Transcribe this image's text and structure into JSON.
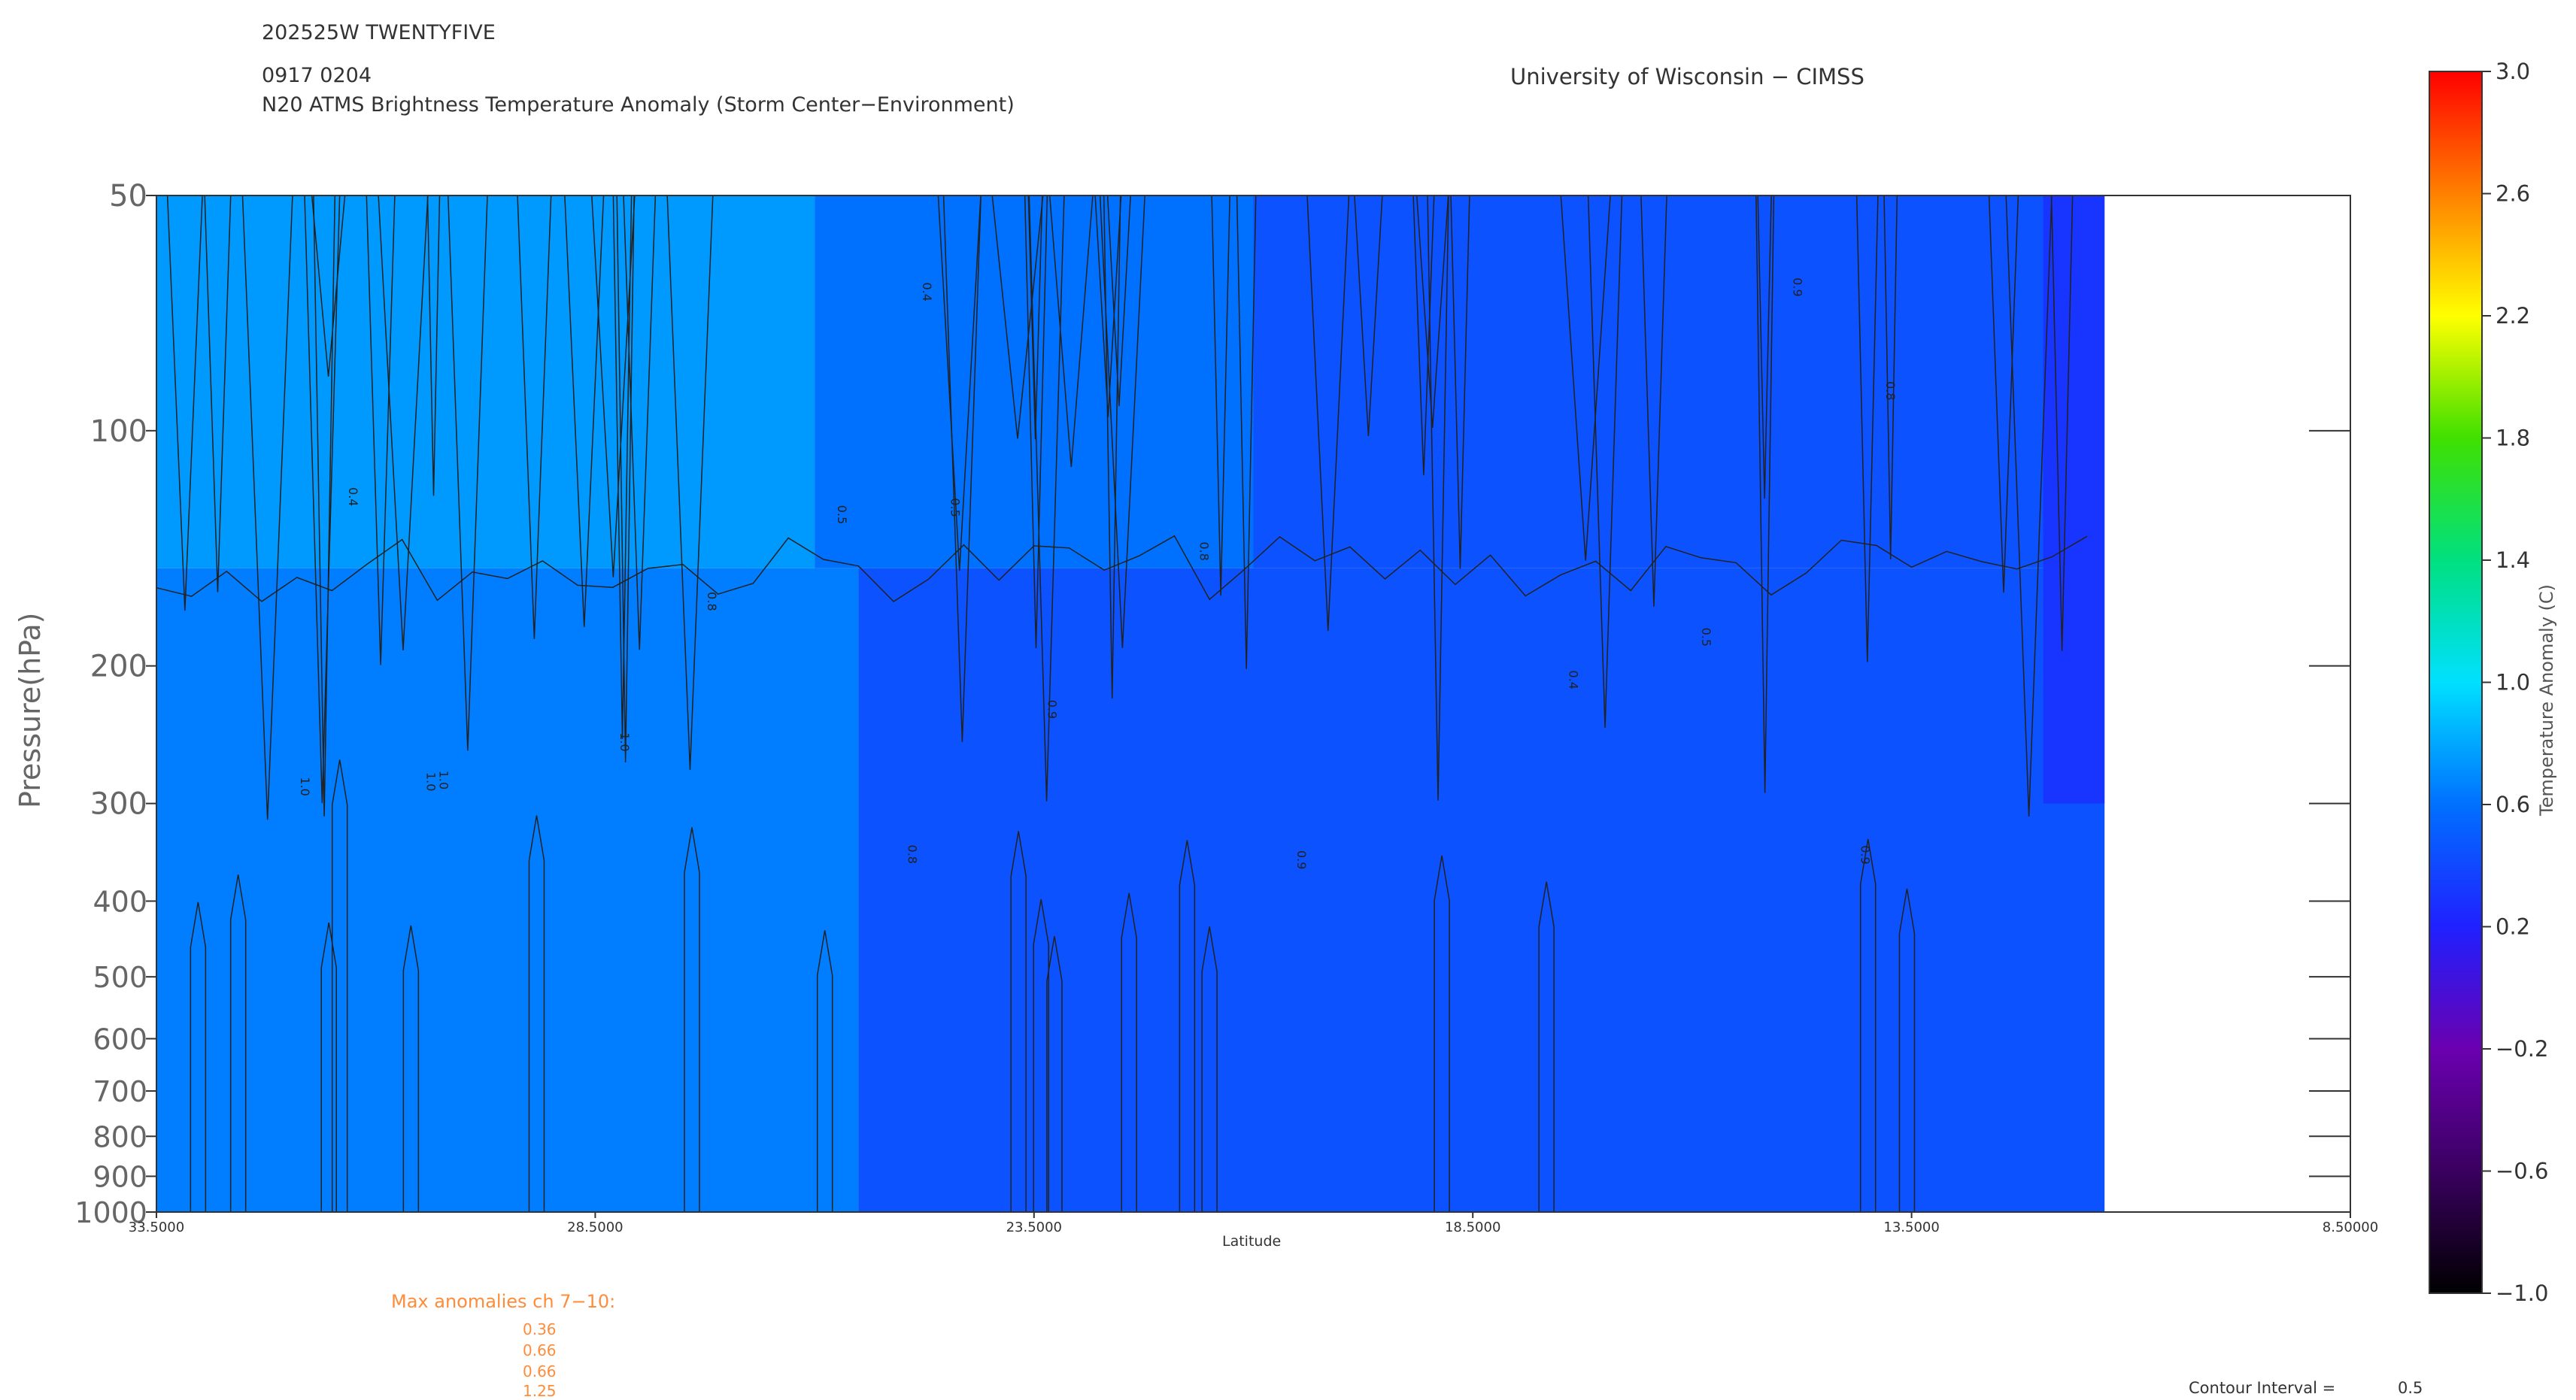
{
  "header": {
    "storm_id": "202525W TWENTYFIVE",
    "datetime": "0917 0204",
    "product": "N20 ATMS Brightness Temperature Anomaly (Storm Center−Environment)",
    "institution": "University of Wisconsin − CIMSS"
  },
  "max_anomalies": {
    "title": "Max anomalies ch 7−10:",
    "values": [
      "0.36",
      "0.66",
      "0.66",
      "1.25"
    ]
  },
  "contour_interval": {
    "label": "Contour Interval =",
    "value": "0.5"
  },
  "colors": {
    "text": "#333333",
    "annotation": "#ff8c3a"
  },
  "chart_data": {
    "type": "heatmap",
    "title": "N20 ATMS Brightness Temperature Anomaly (Storm Center−Environment)",
    "xlabel": "Latitude",
    "ylabel": "Pressure(hPa)",
    "colorbar_label": "Temperature Anomaly (C)",
    "x_reversed": true,
    "xlim": [
      33.5,
      8.5
    ],
    "ylim": [
      1000,
      50
    ],
    "y_scale": "log",
    "x_ticks": [
      "33.5000",
      "28.5000",
      "23.5000",
      "18.5000",
      "13.5000",
      "8.50000"
    ],
    "y_ticks": [
      50,
      100,
      200,
      300,
      400,
      500,
      600,
      700,
      800,
      900,
      1000
    ],
    "colorbar_range": [
      -1.0,
      3.0
    ],
    "colorbar_ticks": [
      "3.0",
      "2.6",
      "2.2",
      "1.8",
      "1.4",
      "1.0",
      "0.6",
      "0.2",
      "−0.2",
      "−0.6",
      "−1.0"
    ],
    "data_extent_lat": [
      33.5,
      11.3
    ],
    "contour_interval": 0.5,
    "regions": [
      {
        "name": "upper",
        "p_range": [
          50,
          150
        ],
        "lat_from": 33.5,
        "lat_to": 26.0,
        "value": 0.75
      },
      {
        "name": "upper",
        "p_range": [
          50,
          150
        ],
        "lat_from": 26.0,
        "lat_to": 21.0,
        "value": 0.6
      },
      {
        "name": "upper",
        "p_range": [
          50,
          150
        ],
        "lat_from": 21.0,
        "lat_to": 11.3,
        "value": 0.45
      },
      {
        "name": "lower",
        "p_range": [
          150,
          1000
        ],
        "lat_from": 33.5,
        "lat_to": 25.5,
        "value": 0.65
      },
      {
        "name": "lower",
        "p_range": [
          150,
          1000
        ],
        "lat_from": 25.5,
        "lat_to": 11.3,
        "value": 0.45
      },
      {
        "name": "min",
        "p_range": [
          50,
          300
        ],
        "lat_from": 12.0,
        "lat_to": 11.3,
        "value": 0.3
      }
    ],
    "contour_labels": [
      "1.0",
      "0.9",
      "0.8",
      "0.5",
      "0.4"
    ]
  }
}
